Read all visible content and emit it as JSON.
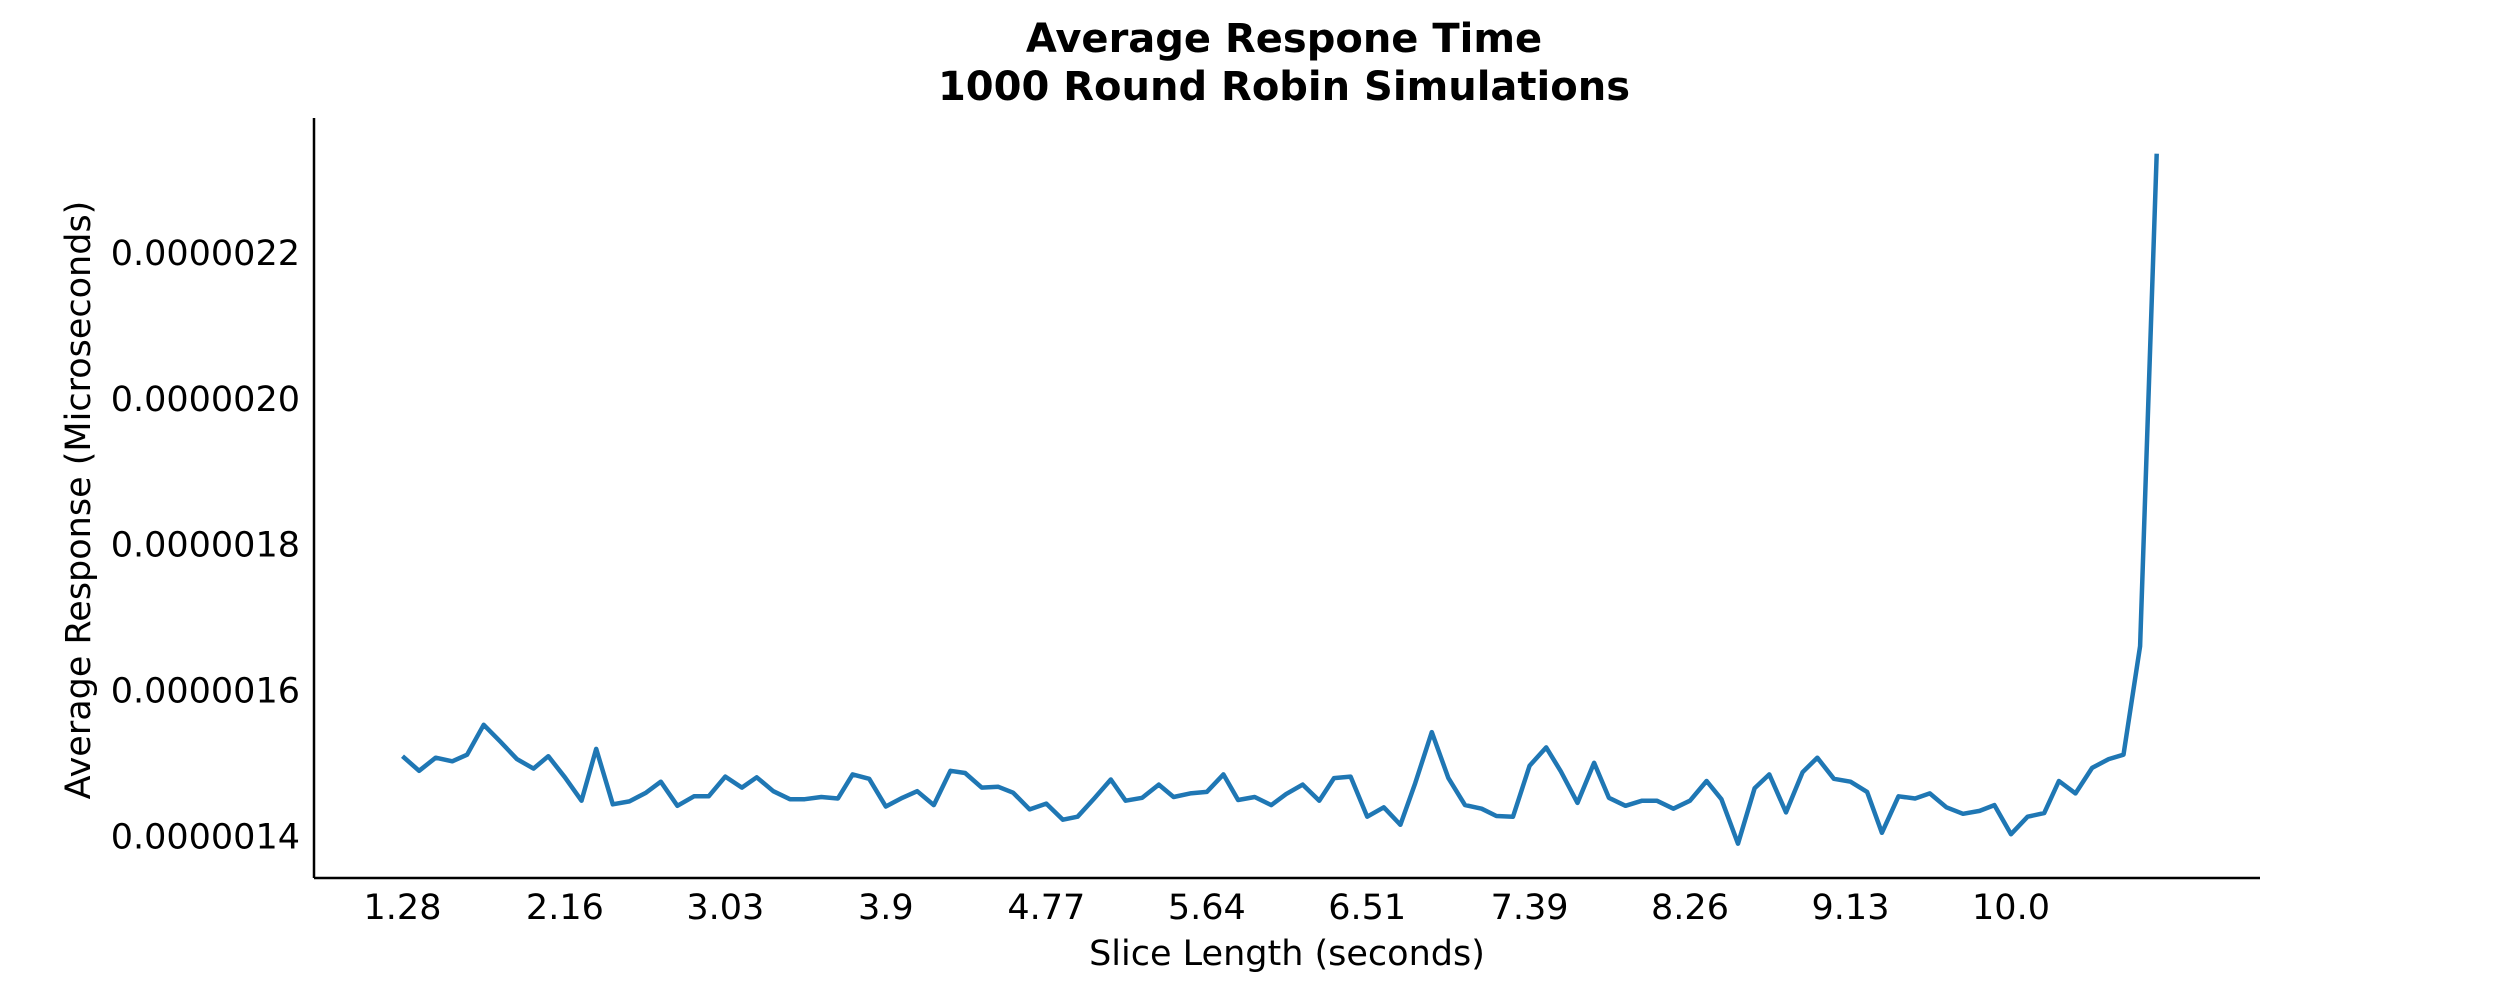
{
  "chart_data": {
    "type": "line",
    "title_line1": "Average Respone Time",
    "title_line2": "1000 Round Robin Simulations",
    "xlabel": "Slice Length (seconds)",
    "ylabel": "Average Response (Microseconds)",
    "line_color": "#1f77b4",
    "grid": false,
    "x_ticks": [
      "1.28",
      "2.16",
      "3.03",
      "3.9",
      "4.77",
      "5.64",
      "6.51",
      "7.39",
      "8.26",
      "9.13",
      "10.0"
    ],
    "y_ticks": [
      "0.0000014",
      "0.0000016",
      "0.0000018",
      "0.0000020",
      "0.0000022"
    ],
    "y_tick_values": [
      1.4e-06,
      1.6e-06,
      1.8e-06,
      2e-06,
      2.2e-06
    ],
    "xlim": [
      0.8,
      11.35
    ],
    "ylim": [
      1.343e-06,
      2.385e-06
    ],
    "x": [
      1.28,
      1.37,
      1.46,
      1.55,
      1.63,
      1.72,
      1.81,
      1.9,
      1.99,
      2.07,
      2.16,
      2.25,
      2.33,
      2.42,
      2.51,
      2.6,
      2.68,
      2.77,
      2.86,
      2.94,
      3.03,
      3.12,
      3.2,
      3.29,
      3.38,
      3.46,
      3.55,
      3.64,
      3.72,
      3.81,
      3.9,
      3.99,
      4.07,
      4.16,
      4.25,
      4.33,
      4.42,
      4.51,
      4.59,
      4.68,
      4.77,
      4.86,
      4.94,
      5.03,
      5.12,
      5.2,
      5.29,
      5.38,
      5.46,
      5.55,
      5.64,
      5.73,
      5.81,
      5.9,
      5.99,
      6.07,
      6.16,
      6.25,
      6.33,
      6.42,
      6.51,
      6.6,
      6.69,
      6.77,
      6.86,
      6.95,
      7.04,
      7.13,
      7.21,
      7.3,
      7.39,
      7.48,
      7.56,
      7.65,
      7.74,
      7.82,
      7.91,
      8.0,
      8.08,
      8.17,
      8.26,
      8.35,
      8.43,
      8.52,
      8.61,
      8.69,
      8.78,
      8.87,
      8.95,
      9.04,
      9.13,
      9.22,
      9.3,
      9.39,
      9.48,
      9.56,
      9.65,
      9.74,
      9.83,
      9.91,
      10.0,
      10.09,
      10.18,
      10.26,
      10.35,
      10.44,
      10.53,
      10.61,
      10.7,
      10.79
    ],
    "y": [
      1.51e-06,
      1.49e-06,
      1.508e-06,
      1.503e-06,
      1.512e-06,
      1.553e-06,
      1.53e-06,
      1.506e-06,
      1.493e-06,
      1.51e-06,
      1.481e-06,
      1.449e-06,
      1.52e-06,
      1.444e-06,
      1.448e-06,
      1.46e-06,
      1.475e-06,
      1.442e-06,
      1.455e-06,
      1.455e-06,
      1.482e-06,
      1.467e-06,
      1.481e-06,
      1.462e-06,
      1.451e-06,
      1.451e-06,
      1.454e-06,
      1.452e-06,
      1.485e-06,
      1.479e-06,
      1.441e-06,
      1.453e-06,
      1.462e-06,
      1.443e-06,
      1.49e-06,
      1.487e-06,
      1.467e-06,
      1.468e-06,
      1.46e-06,
      1.437e-06,
      1.445e-06,
      1.423e-06,
      1.427e-06,
      1.452e-06,
      1.478e-06,
      1.449e-06,
      1.453e-06,
      1.471e-06,
      1.454e-06,
      1.459e-06,
      1.461e-06,
      1.485e-06,
      1.45e-06,
      1.454e-06,
      1.443e-06,
      1.458e-06,
      1.471e-06,
      1.449e-06,
      1.48e-06,
      1.482e-06,
      1.427e-06,
      1.44e-06,
      1.416e-06,
      1.473e-06,
      1.543e-06,
      1.48e-06,
      1.443e-06,
      1.438e-06,
      1.428e-06,
      1.427e-06,
      1.497e-06,
      1.522e-06,
      1.489e-06,
      1.446e-06,
      1.501e-06,
      1.453e-06,
      1.442e-06,
      1.449e-06,
      1.449e-06,
      1.438e-06,
      1.449e-06,
      1.476e-06,
      1.451e-06,
      1.39e-06,
      1.466e-06,
      1.485e-06,
      1.433e-06,
      1.488e-06,
      1.508e-06,
      1.479e-06,
      1.475e-06,
      1.461e-06,
      1.405e-06,
      1.455e-06,
      1.452e-06,
      1.459e-06,
      1.44e-06,
      1.431e-06,
      1.435e-06,
      1.443e-06,
      1.403e-06,
      1.427e-06,
      1.432e-06,
      1.476e-06,
      1.459e-06,
      1.494e-06,
      1.506e-06,
      1.512e-06,
      1.661e-06,
      2.336e-06
    ]
  }
}
